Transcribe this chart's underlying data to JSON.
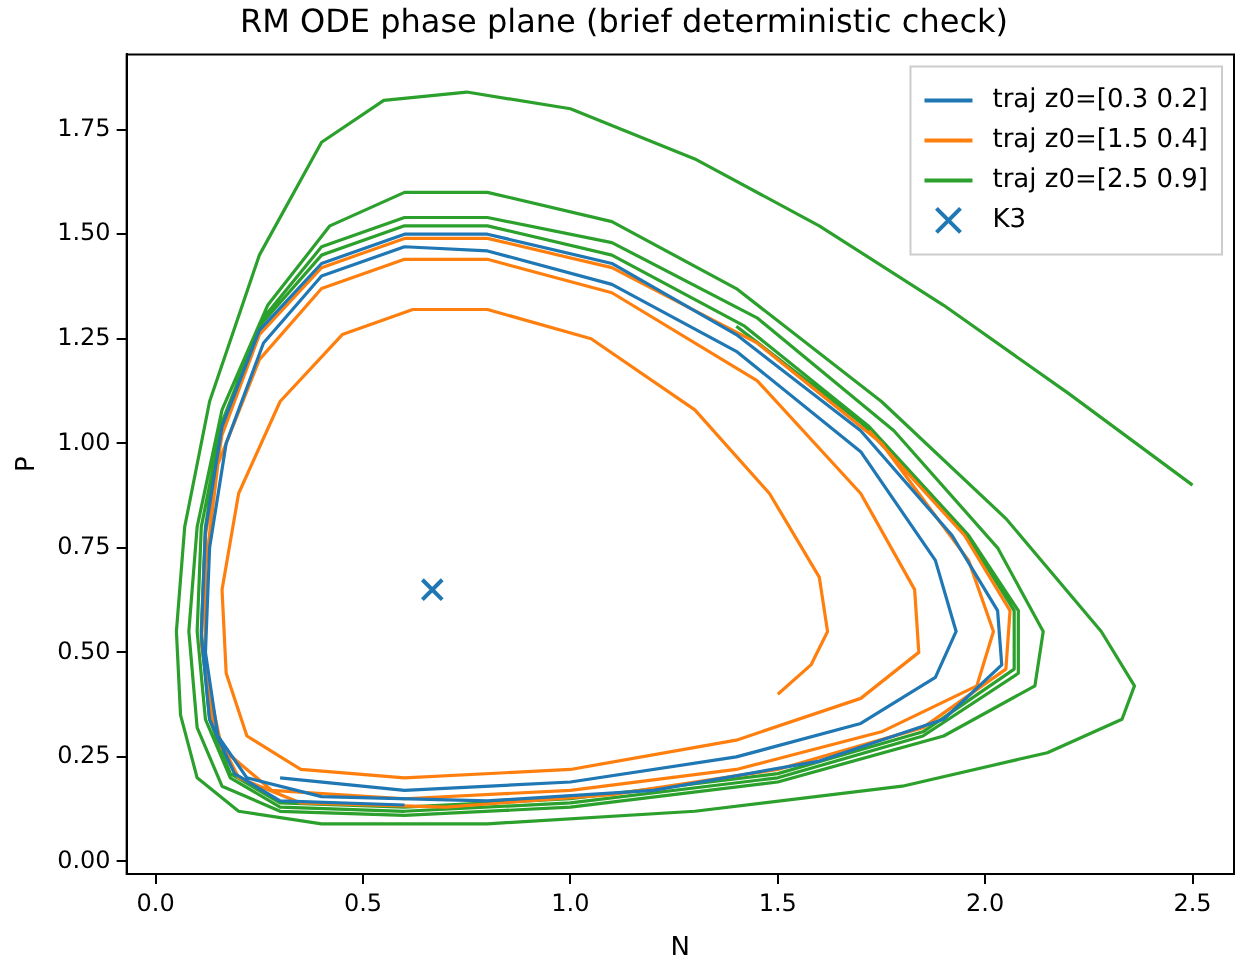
{
  "chart_data": {
    "type": "line",
    "title": "RM ODE phase plane (brief deterministic check)",
    "xlabel": "N",
    "ylabel": "P",
    "xlim": [
      -0.07,
      2.6
    ],
    "ylim": [
      -0.03,
      1.93
    ],
    "xticks": [
      {
        "value": 0,
        "label": "0.0"
      },
      {
        "value": 0.5,
        "label": "0.5"
      },
      {
        "value": 1,
        "label": "1.0"
      },
      {
        "value": 1.5,
        "label": "1.5"
      },
      {
        "value": 2,
        "label": "2.0"
      },
      {
        "value": 2.5,
        "label": "2.5"
      }
    ],
    "yticks": [
      {
        "value": 0,
        "label": "0.00"
      },
      {
        "value": 0.25,
        "label": "0.25"
      },
      {
        "value": 0.5,
        "label": "0.50"
      },
      {
        "value": 0.75,
        "label": "0.75"
      },
      {
        "value": 1,
        "label": "1.00"
      },
      {
        "value": 1.25,
        "label": "1.25"
      },
      {
        "value": 1.5,
        "label": "1.50"
      },
      {
        "value": 1.75,
        "label": "1.75"
      }
    ],
    "grid": false,
    "legend": "top right",
    "marker": "none",
    "line_style": "solid",
    "series": [
      {
        "name": "traj z0=[0.3 0.2]",
        "color": "#1f77b4",
        "x": [
          0.3,
          0.6,
          1.0,
          1.4,
          1.7,
          1.88,
          1.93,
          1.88,
          1.7,
          1.4,
          1.1,
          0.8,
          0.6,
          0.4,
          0.26,
          0.17,
          0.13,
          0.12,
          0.15,
          0.22,
          0.4,
          0.8,
          1.2,
          1.6,
          1.9,
          2.04,
          2.03,
          1.92,
          1.7,
          1.4,
          1.1,
          0.8,
          0.6,
          0.4,
          0.25,
          0.16,
          0.12,
          0.11,
          0.13,
          0.19,
          0.3,
          0.6
        ],
        "values": [
          0.2,
          0.17,
          0.19,
          0.25,
          0.33,
          0.44,
          0.55,
          0.72,
          0.98,
          1.22,
          1.38,
          1.46,
          1.47,
          1.4,
          1.24,
          1.0,
          0.75,
          0.5,
          0.3,
          0.2,
          0.155,
          0.145,
          0.17,
          0.24,
          0.34,
          0.47,
          0.6,
          0.78,
          1.03,
          1.26,
          1.43,
          1.5,
          1.5,
          1.43,
          1.27,
          1.04,
          0.79,
          0.54,
          0.34,
          0.21,
          0.145,
          0.135
        ]
      },
      {
        "name": "traj z0=[1.5 0.4]",
        "color": "#ff7f0e",
        "x": [
          1.5,
          1.58,
          1.62,
          1.6,
          1.48,
          1.3,
          1.05,
          0.8,
          0.62,
          0.45,
          0.3,
          0.2,
          0.16,
          0.17,
          0.22,
          0.35,
          0.6,
          1.0,
          1.4,
          1.7,
          1.84,
          1.83,
          1.7,
          1.45,
          1.1,
          0.8,
          0.6,
          0.4,
          0.25,
          0.15,
          0.12,
          0.12,
          0.16,
          0.28,
          0.6,
          1.0,
          1.4,
          1.75,
          1.98,
          2.02,
          1.96,
          1.75,
          1.45,
          1.1,
          0.8,
          0.6,
          0.4,
          0.25,
          0.16,
          0.12,
          0.11,
          0.14,
          0.2,
          0.35,
          0.7,
          1.1,
          1.5,
          1.85,
          2.05,
          2.06,
          1.95,
          1.72
        ],
        "values": [
          0.4,
          0.47,
          0.55,
          0.68,
          0.88,
          1.08,
          1.25,
          1.32,
          1.32,
          1.26,
          1.1,
          0.88,
          0.65,
          0.45,
          0.3,
          0.22,
          0.2,
          0.22,
          0.29,
          0.39,
          0.5,
          0.65,
          0.88,
          1.15,
          1.36,
          1.44,
          1.44,
          1.37,
          1.2,
          0.95,
          0.7,
          0.45,
          0.27,
          0.17,
          0.15,
          0.17,
          0.22,
          0.31,
          0.42,
          0.55,
          0.72,
          1.0,
          1.24,
          1.42,
          1.49,
          1.49,
          1.42,
          1.26,
          1.02,
          0.78,
          0.52,
          0.32,
          0.2,
          0.14,
          0.13,
          0.16,
          0.22,
          0.32,
          0.46,
          0.6,
          0.78,
          1.03
        ]
      },
      {
        "name": "traj z0=[2.5 0.9]",
        "color": "#2ca02c",
        "x": [
          2.5,
          2.2,
          1.9,
          1.6,
          1.3,
          1.0,
          0.75,
          0.55,
          0.4,
          0.25,
          0.13,
          0.07,
          0.05,
          0.06,
          0.1,
          0.2,
          0.4,
          0.8,
          1.3,
          1.8,
          2.15,
          2.33,
          2.36,
          2.28,
          2.05,
          1.75,
          1.4,
          1.1,
          0.8,
          0.6,
          0.42,
          0.27,
          0.16,
          0.1,
          0.08,
          0.1,
          0.16,
          0.3,
          0.6,
          1.0,
          1.5,
          1.9,
          2.12,
          2.14,
          2.03,
          1.78,
          1.45,
          1.1,
          0.8,
          0.6,
          0.4,
          0.26,
          0.16,
          0.11,
          0.1,
          0.12,
          0.18,
          0.3,
          0.6,
          1.0,
          1.5,
          1.85,
          2.08,
          2.08,
          1.96,
          1.72,
          1.42,
          1.1,
          0.8,
          0.6,
          0.4,
          0.25,
          0.16,
          0.12,
          0.11,
          0.13,
          0.18,
          0.3,
          0.6,
          1.0,
          1.5,
          1.85,
          2.07,
          2.07,
          1.95,
          1.7,
          1.4
        ],
        "values": [
          0.9,
          1.12,
          1.33,
          1.52,
          1.68,
          1.8,
          1.84,
          1.82,
          1.72,
          1.45,
          1.1,
          0.8,
          0.55,
          0.35,
          0.2,
          0.12,
          0.09,
          0.09,
          0.12,
          0.18,
          0.26,
          0.34,
          0.42,
          0.55,
          0.82,
          1.1,
          1.37,
          1.53,
          1.6,
          1.6,
          1.52,
          1.33,
          1.08,
          0.8,
          0.55,
          0.32,
          0.18,
          0.12,
          0.11,
          0.13,
          0.19,
          0.3,
          0.42,
          0.55,
          0.75,
          1.03,
          1.3,
          1.48,
          1.54,
          1.54,
          1.47,
          1.3,
          1.05,
          0.8,
          0.55,
          0.34,
          0.2,
          0.13,
          0.12,
          0.14,
          0.2,
          0.3,
          0.45,
          0.6,
          0.78,
          1.04,
          1.28,
          1.45,
          1.52,
          1.52,
          1.45,
          1.28,
          1.05,
          0.8,
          0.55,
          0.34,
          0.21,
          0.14,
          0.13,
          0.15,
          0.21,
          0.31,
          0.46,
          0.6,
          0.79,
          1.05,
          1.28
        ]
      },
      {
        "name": "K3",
        "type": "scatter",
        "marker": "cross",
        "color": "#1f77b4",
        "x": [
          0.667
        ],
        "values": [
          0.65
        ]
      }
    ]
  }
}
